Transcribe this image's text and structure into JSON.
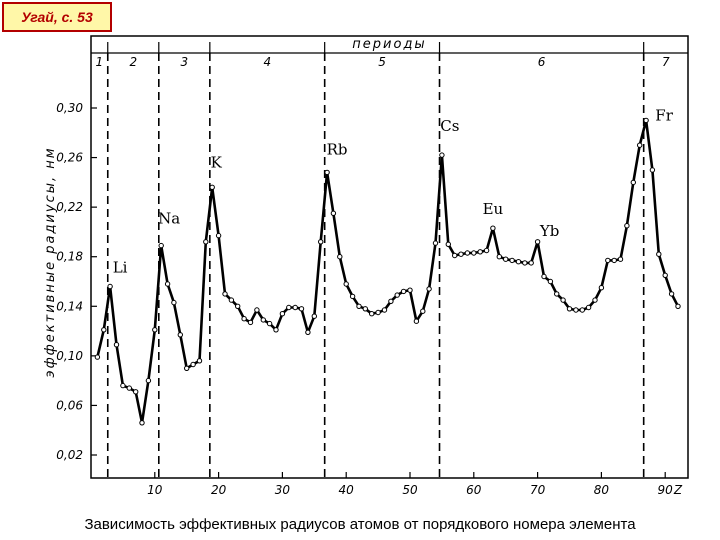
{
  "source_label": "Угай, с. 53",
  "caption": "Зависимость эффективных радиусов атомов от порядкового номера элемента",
  "chart_data": {
    "type": "line",
    "ylabel": "эффективные радиусы, нм",
    "xlabel": "Z",
    "top_axis_label": "периоды",
    "xlim": [
      0,
      93
    ],
    "x_ticks": [
      10,
      20,
      30,
      40,
      50,
      60,
      70,
      80,
      90
    ],
    "y_tick_labels": [
      "0,02",
      "0,06",
      "0,10",
      "0,14",
      "0,18",
      "0,22",
      "0,26",
      "0,30"
    ],
    "period_boundaries": [
      2,
      10,
      18,
      36,
      54,
      86
    ],
    "periods": [
      {
        "label": "1",
        "z_range": [
          0,
          2
        ]
      },
      {
        "label": "2",
        "z_range": [
          2,
          10
        ]
      },
      {
        "label": "3",
        "z_range": [
          10,
          18
        ]
      },
      {
        "label": "4",
        "z_range": [
          18,
          36
        ]
      },
      {
        "label": "5",
        "z_range": [
          36,
          54
        ]
      },
      {
        "label": "6",
        "z_range": [
          54,
          86
        ]
      },
      {
        "label": "7",
        "z_range": [
          86,
          93
        ]
      }
    ],
    "annotations": [
      {
        "text": "Li",
        "z": 3
      },
      {
        "text": "Na",
        "z": 11
      },
      {
        "text": "K",
        "z": 19
      },
      {
        "text": "Rb",
        "z": 37
      },
      {
        "text": "Cs",
        "z": 55
      },
      {
        "text": "Eu",
        "z": 63
      },
      {
        "text": "Yb",
        "z": 70
      },
      {
        "text": "Fr",
        "z": 87
      }
    ],
    "series": [
      {
        "x": [
          1,
          2,
          3,
          4,
          5,
          6,
          7,
          8,
          9,
          10,
          11,
          12,
          13,
          14,
          15,
          16,
          17,
          18,
          19,
          20,
          21,
          22,
          23,
          24,
          25,
          26,
          27,
          28,
          29,
          30,
          31,
          32,
          33,
          34,
          35,
          36,
          37,
          38,
          39,
          40,
          41,
          42,
          43,
          44,
          45,
          46,
          47,
          48,
          49,
          50,
          51,
          52,
          53,
          54,
          55,
          56,
          57,
          58,
          59,
          60,
          61,
          62,
          63,
          64,
          65,
          66,
          67,
          68,
          69,
          70,
          71,
          72,
          73,
          74,
          75,
          76,
          77,
          78,
          79,
          80,
          81,
          82,
          83,
          84,
          85,
          86,
          87,
          88,
          89,
          90,
          91,
          92
        ],
        "y": [
          0.099,
          0.121,
          0.156,
          0.109,
          0.076,
          0.074,
          0.071,
          0.046,
          0.08,
          0.121,
          0.189,
          0.158,
          0.143,
          0.117,
          0.09,
          0.093,
          0.096,
          0.192,
          0.236,
          0.197,
          0.15,
          0.145,
          0.14,
          0.13,
          0.127,
          0.137,
          0.129,
          0.126,
          0.121,
          0.134,
          0.139,
          0.139,
          0.138,
          0.119,
          0.132,
          0.192,
          0.248,
          0.215,
          0.18,
          0.158,
          0.148,
          0.14,
          0.138,
          0.134,
          0.135,
          0.137,
          0.144,
          0.149,
          0.152,
          0.153,
          0.128,
          0.136,
          0.154,
          0.191,
          0.262,
          0.19,
          0.181,
          0.182,
          0.183,
          0.183,
          0.184,
          0.185,
          0.203,
          0.18,
          0.178,
          0.177,
          0.176,
          0.175,
          0.175,
          0.192,
          0.164,
          0.16,
          0.15,
          0.145,
          0.138,
          0.137,
          0.137,
          0.139,
          0.145,
          0.155,
          0.177,
          0.177,
          0.178,
          0.205,
          0.24,
          0.27,
          0.29,
          0.25,
          0.182,
          0.165,
          0.15,
          0.14
        ]
      }
    ]
  }
}
